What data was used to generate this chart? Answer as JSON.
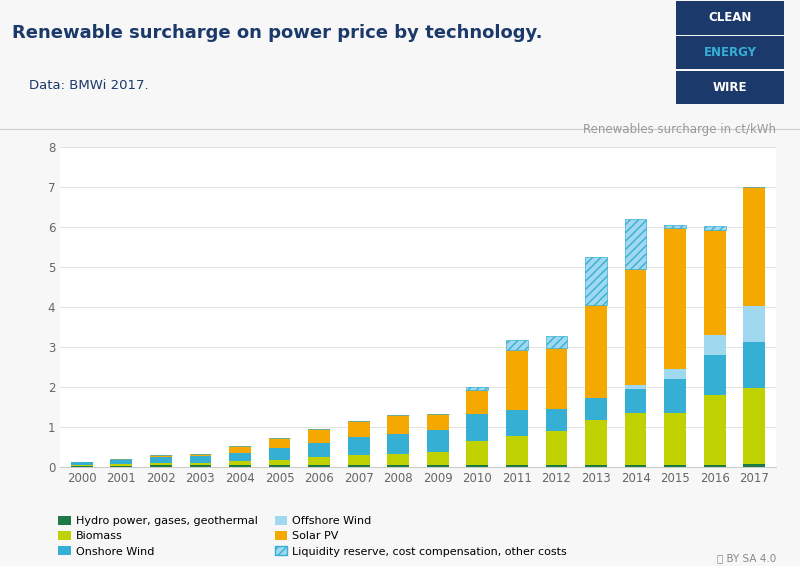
{
  "years": [
    2000,
    2001,
    2002,
    2003,
    2004,
    2005,
    2006,
    2007,
    2008,
    2009,
    2010,
    2011,
    2012,
    2013,
    2014,
    2015,
    2016,
    2017
  ],
  "title": "Renewable surcharge on power price by technology.",
  "subtitle": "    Data: BMWi 2017.",
  "ylabel": "Renewables surcharge in ct/kWh",
  "ylim": [
    0,
    8
  ],
  "yticks": [
    0,
    1,
    2,
    3,
    4,
    5,
    6,
    7,
    8
  ],
  "series": {
    "hydro": [
      0.02,
      0.03,
      0.04,
      0.04,
      0.04,
      0.04,
      0.05,
      0.05,
      0.04,
      0.04,
      0.04,
      0.05,
      0.05,
      0.06,
      0.06,
      0.06,
      0.06,
      0.07
    ],
    "biomass": [
      0.03,
      0.04,
      0.06,
      0.07,
      0.1,
      0.14,
      0.19,
      0.24,
      0.29,
      0.33,
      0.61,
      0.73,
      0.86,
      1.12,
      1.3,
      1.28,
      1.73,
      1.9
    ],
    "onshore_wind": [
      0.07,
      0.1,
      0.14,
      0.16,
      0.22,
      0.3,
      0.37,
      0.45,
      0.5,
      0.55,
      0.68,
      0.65,
      0.55,
      0.55,
      0.6,
      0.85,
      1.0,
      1.15
    ],
    "offshore_wind": [
      0.0,
      0.0,
      0.0,
      0.0,
      0.0,
      0.0,
      0.0,
      0.0,
      0.0,
      0.0,
      0.0,
      0.0,
      0.0,
      0.0,
      0.1,
      0.25,
      0.5,
      0.9
    ],
    "solar_pv": [
      0.01,
      0.02,
      0.06,
      0.06,
      0.16,
      0.24,
      0.34,
      0.4,
      0.48,
      0.4,
      0.59,
      1.49,
      1.52,
      2.32,
      2.9,
      3.55,
      2.65,
      2.98
    ],
    "liquidity": [
      0.0,
      0.0,
      0.0,
      0.0,
      0.0,
      0.0,
      0.0,
      0.0,
      0.0,
      0.0,
      0.08,
      0.25,
      0.3,
      1.2,
      1.25,
      0.06,
      0.1,
      0.0
    ]
  },
  "colors": {
    "hydro": "#1d7a45",
    "biomass": "#bfd100",
    "onshore_wind": "#35b0d4",
    "offshore_wind": "#a0d8ef",
    "solar_pv": "#f5a800",
    "liquidity_fill": "#a0d8ef",
    "liquidity_edge": "#35b0d4"
  },
  "legend_labels": {
    "hydro": "Hydro power, gases, geothermal",
    "biomass": "Biomass",
    "onshore_wind": "Onshore Wind",
    "offshore_wind": "Offshore Wind",
    "solar_pv": "Solar PV",
    "liquidity": "Liquidity reserve, cost compensation, other costs"
  },
  "bg_chart": "#ffffff",
  "bg_header": "#f7f7f7",
  "bg_fig": "#f7f7f7",
  "logo": {
    "clean_bg": "#1b3a6b",
    "energy_bg": "#1b3a6b",
    "wire_bg": "#1b3a6b",
    "clean_txt": "#ffffff",
    "energy_txt": "#35b0d4",
    "wire_txt": "#ffffff"
  }
}
